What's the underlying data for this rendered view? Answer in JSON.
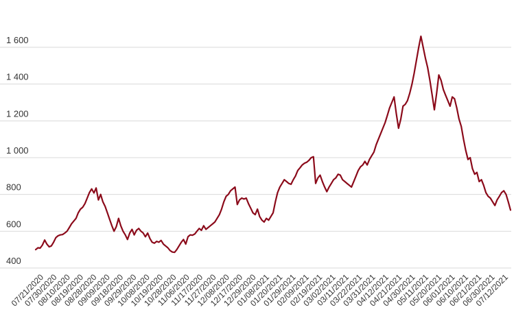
{
  "chart_data": {
    "type": "line",
    "title": "",
    "xlabel": "",
    "ylabel": "",
    "ylim": [
      400,
      1700
    ],
    "y_ticks": [
      400,
      600,
      800,
      1000,
      1200,
      1400,
      1600
    ],
    "y_tick_labels": [
      "400",
      "600",
      "800",
      "1 000",
      "1 200",
      "1 400",
      "1 600"
    ],
    "grid": true,
    "line_color": "#8b0a1a",
    "x_tick_labels": [
      "07/21/2020",
      "07/30/2020",
      "08/10/2020",
      "08/19/2020",
      "08/28/2020",
      "09/09/2020",
      "09/18/2020",
      "09/29/2020",
      "10/08/2020",
      "10/19/2020",
      "10/28/2020",
      "11/06/2020",
      "11/17/2020",
      "11/27/2020",
      "12/08/2020",
      "12/17/2020",
      "12/29/2020",
      "01/08/2021",
      "01/20/2021",
      "01/29/2021",
      "02/09/2021",
      "02/19/2021",
      "03/02/2021",
      "03/11/2021",
      "03/22/2021",
      "03/31/2021",
      "04/12/2021",
      "04/21/2021",
      "04/30/2021",
      "05/11/2021",
      "05/20/2021",
      "06/01/2021",
      "06/10/2021",
      "06/21/2021",
      "06/30/2021",
      "07/12/2021"
    ],
    "series": [
      {
        "values": [
          500,
          510,
          508,
          525,
          552,
          530,
          515,
          520,
          540,
          565,
          575,
          580,
          582,
          590,
          600,
          620,
          640,
          655,
          670,
          700,
          720,
          730,
          750,
          780,
          810,
          830,
          808,
          835,
          770,
          800,
          760,
          735,
          700,
          665,
          630,
          600,
          625,
          670,
          630,
          600,
          580,
          555,
          590,
          610,
          580,
          605,
          615,
          600,
          590,
          570,
          590,
          560,
          540,
          535,
          545,
          540,
          550,
          530,
          520,
          510,
          495,
          487,
          485,
          500,
          520,
          540,
          555,
          530,
          570,
          580,
          578,
          585,
          600,
          615,
          605,
          630,
          610,
          620,
          630,
          640,
          650,
          670,
          690,
          720,
          760,
          790,
          800,
          820,
          830,
          840,
          745,
          770,
          780,
          775,
          780,
          750,
          725,
          700,
          690,
          720,
          680,
          660,
          650,
          670,
          660,
          680,
          700,
          760,
          810,
          840,
          860,
          880,
          870,
          860,
          855,
          880,
          900,
          930,
          945,
          960,
          970,
          975,
          985,
          1000,
          1005,
          860,
          890,
          905,
          870,
          840,
          815,
          840,
          860,
          880,
          890,
          910,
          905,
          880,
          870,
          860,
          850,
          840,
          870,
          900,
          930,
          950,
          960,
          980,
          960,
          990,
          1010,
          1030,
          1070,
          1100,
          1130,
          1160,
          1190,
          1230,
          1270,
          1300,
          1330,
          1240,
          1160,
          1210,
          1280,
          1290,
          1310,
          1350,
          1400,
          1460,
          1530,
          1600,
          1660,
          1600,
          1540,
          1490,
          1420,
          1340,
          1260,
          1350,
          1450,
          1420,
          1370,
          1340,
          1310,
          1280,
          1330,
          1320,
          1270,
          1210,
          1170,
          1100,
          1040,
          990,
          1000,
          940,
          910,
          920,
          870,
          880,
          850,
          810,
          790,
          780,
          760,
          740,
          770,
          790,
          810,
          820,
          800,
          760,
          715
        ]
      }
    ]
  }
}
